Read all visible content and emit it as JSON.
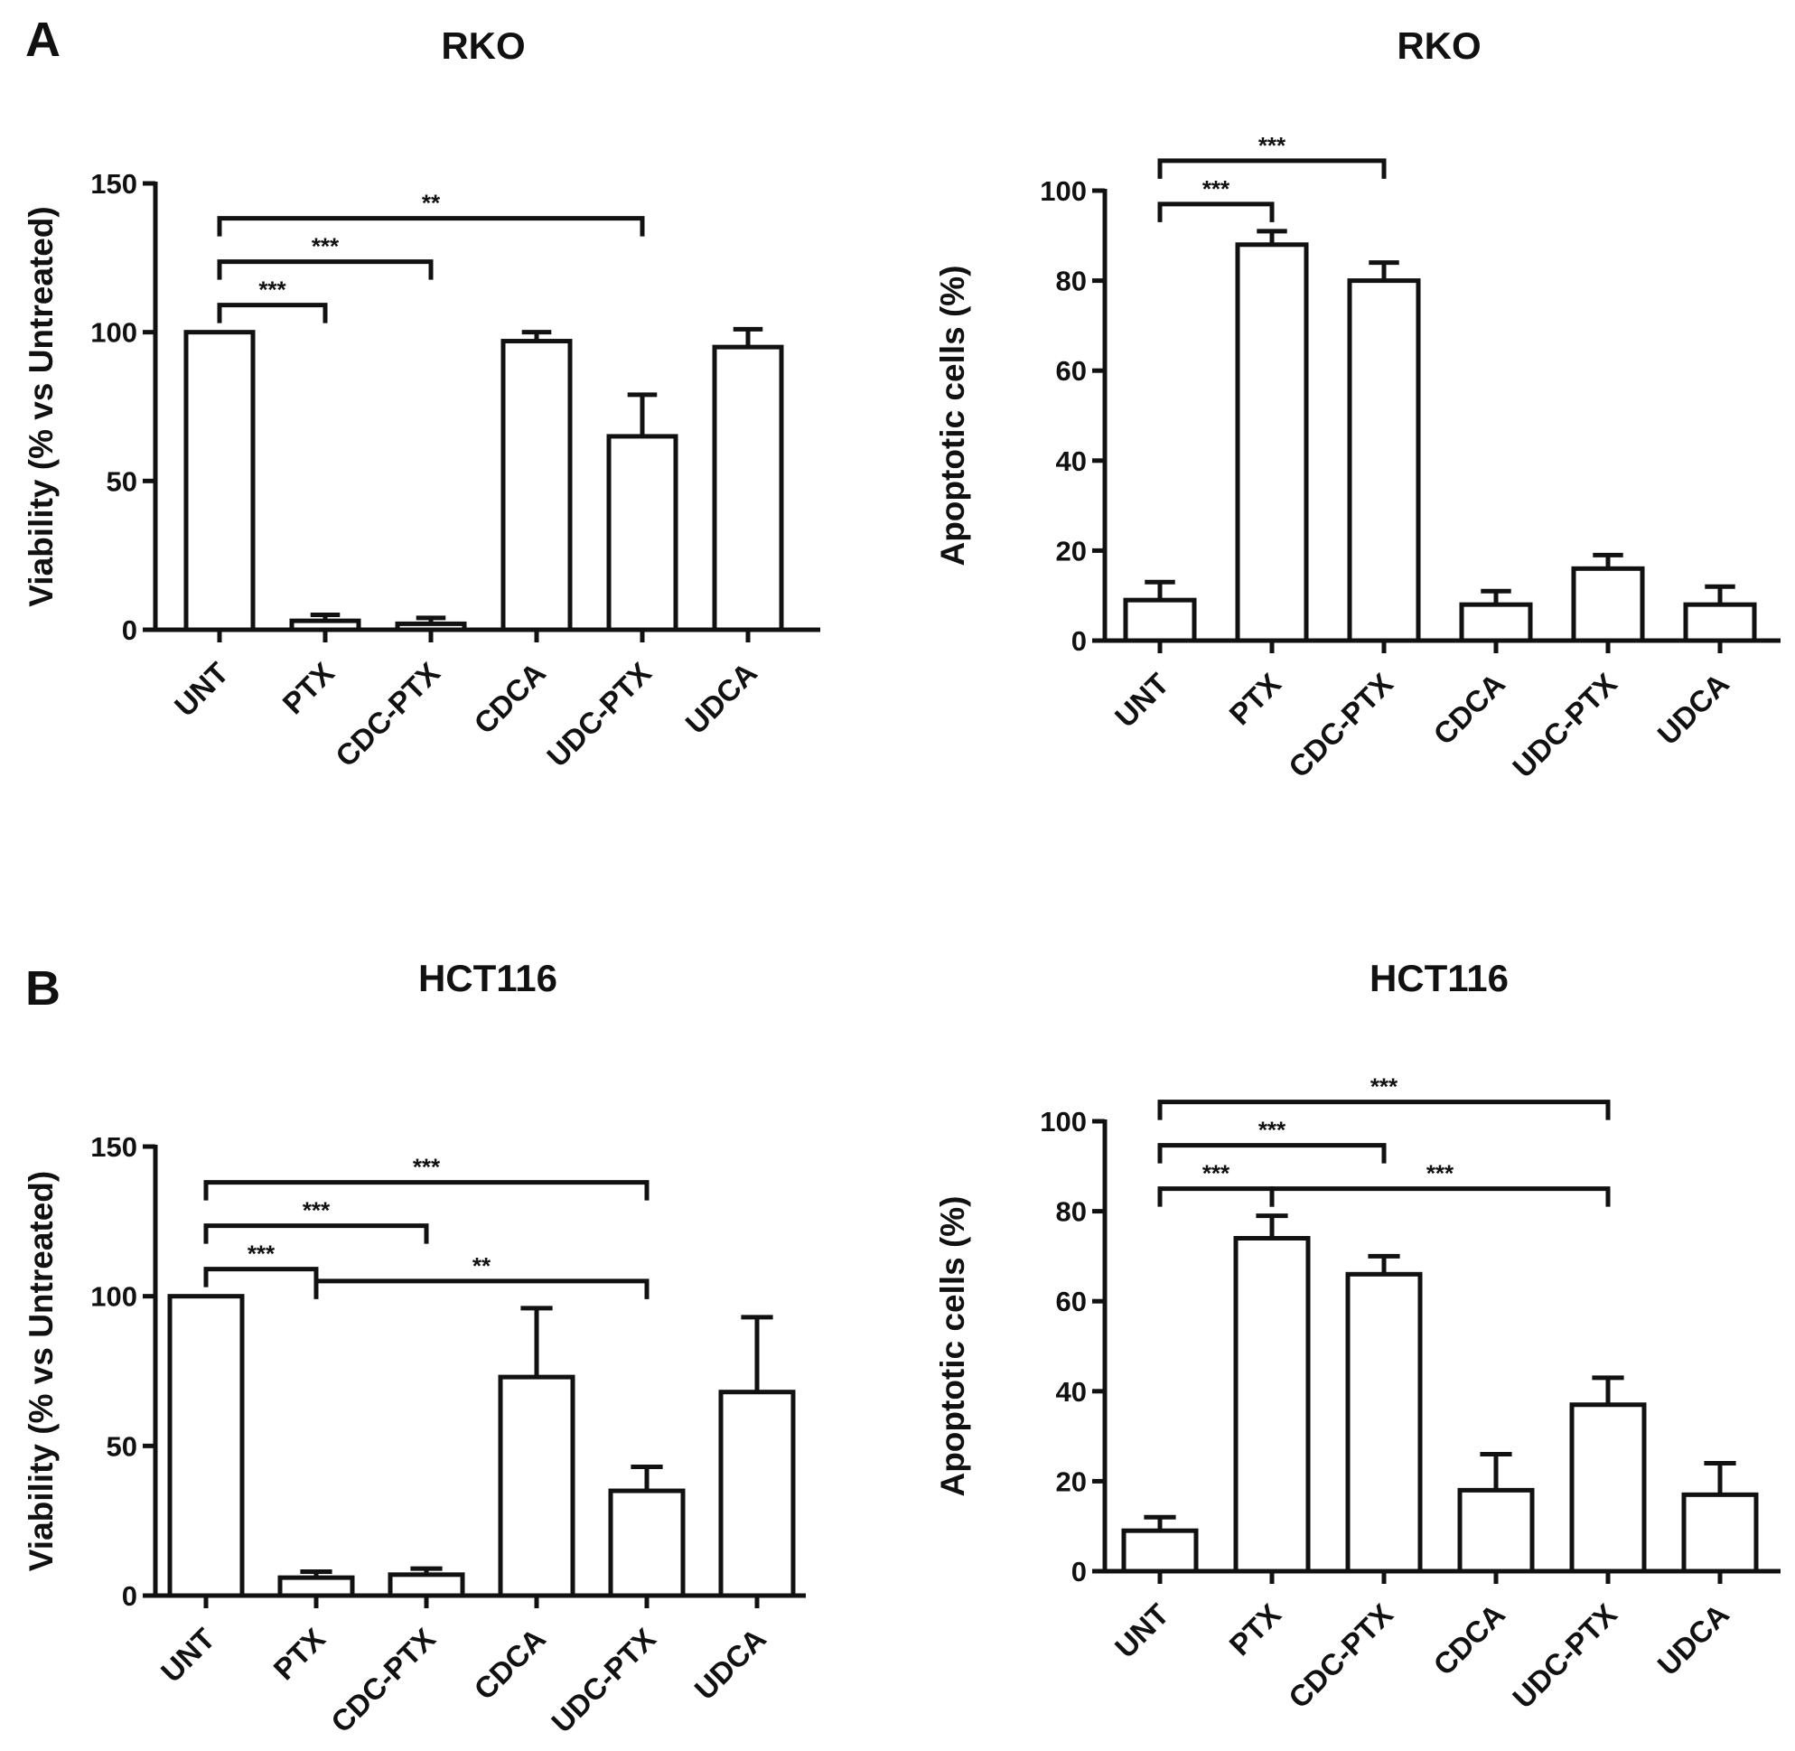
{
  "panels": [
    {
      "letter": "A"
    },
    {
      "letter": "B"
    }
  ],
  "chart_data": [
    {
      "type": "bar",
      "title": "RKO",
      "panel": "A",
      "xlabel": "",
      "ylabel": "Viability (% vs Untreated)",
      "ylim": [
        0,
        150
      ],
      "yticks": [
        0,
        50,
        100,
        150
      ],
      "grid": false,
      "categories": [
        "UNT",
        "PTX",
        "CDC-PTX",
        "CDCA",
        "UDC-PTX",
        "UDCA"
      ],
      "values": [
        100,
        3,
        2,
        97,
        65,
        95
      ],
      "errors": [
        0,
        2,
        2,
        3,
        14,
        6
      ],
      "significance": [
        {
          "from": 0,
          "to": 1,
          "label": "***"
        },
        {
          "from": 0,
          "to": 2,
          "label": "***"
        },
        {
          "from": 0,
          "to": 4,
          "label": "**"
        }
      ]
    },
    {
      "type": "bar",
      "title": "RKO",
      "panel": "A",
      "xlabel": "",
      "ylabel": "Apoptotic cells (%)",
      "ylim": [
        0,
        100
      ],
      "yticks": [
        0,
        20,
        40,
        60,
        80,
        100
      ],
      "grid": false,
      "categories": [
        "UNT",
        "PTX",
        "CDC-PTX",
        "CDCA",
        "UDC-PTX",
        "UDCA"
      ],
      "values": [
        9,
        88,
        80,
        8,
        16,
        8
      ],
      "errors": [
        4,
        3,
        4,
        3,
        3,
        4
      ],
      "significance": [
        {
          "from": 0,
          "to": 1,
          "label": "***"
        },
        {
          "from": 0,
          "to": 2,
          "label": "***"
        }
      ]
    },
    {
      "type": "bar",
      "title": "HCT116",
      "panel": "B",
      "xlabel": "",
      "ylabel": "Viability (% vs Untreated)",
      "ylim": [
        0,
        150
      ],
      "yticks": [
        0,
        50,
        100,
        150
      ],
      "grid": false,
      "categories": [
        "UNT",
        "PTX",
        "CDC-PTX",
        "CDCA",
        "UDC-PTX",
        "UDCA"
      ],
      "values": [
        100,
        6,
        7,
        73,
        35,
        68
      ],
      "errors": [
        0,
        2,
        2,
        23,
        8,
        25
      ],
      "significance": [
        {
          "from": 0,
          "to": 1,
          "label": "***"
        },
        {
          "from": 1,
          "to": 4,
          "label": "**"
        },
        {
          "from": 0,
          "to": 2,
          "label": "***"
        },
        {
          "from": 0,
          "to": 4,
          "label": "***"
        }
      ]
    },
    {
      "type": "bar",
      "title": "HCT116",
      "panel": "B",
      "xlabel": "",
      "ylabel": "Apoptotic cells (%)",
      "ylim": [
        0,
        100
      ],
      "yticks": [
        0,
        20,
        40,
        60,
        80,
        100
      ],
      "grid": false,
      "categories": [
        "UNT",
        "PTX",
        "CDC-PTX",
        "CDCA",
        "UDC-PTX",
        "UDCA"
      ],
      "values": [
        9,
        74,
        66,
        18,
        37,
        17
      ],
      "errors": [
        3,
        5,
        4,
        8,
        6,
        7
      ],
      "significance": [
        {
          "from": 0,
          "to": 1,
          "label": "***"
        },
        {
          "from": 1,
          "to": 4,
          "label": "***"
        },
        {
          "from": 0,
          "to": 2,
          "label": "***"
        },
        {
          "from": 0,
          "to": 4,
          "label": "***"
        }
      ]
    }
  ]
}
